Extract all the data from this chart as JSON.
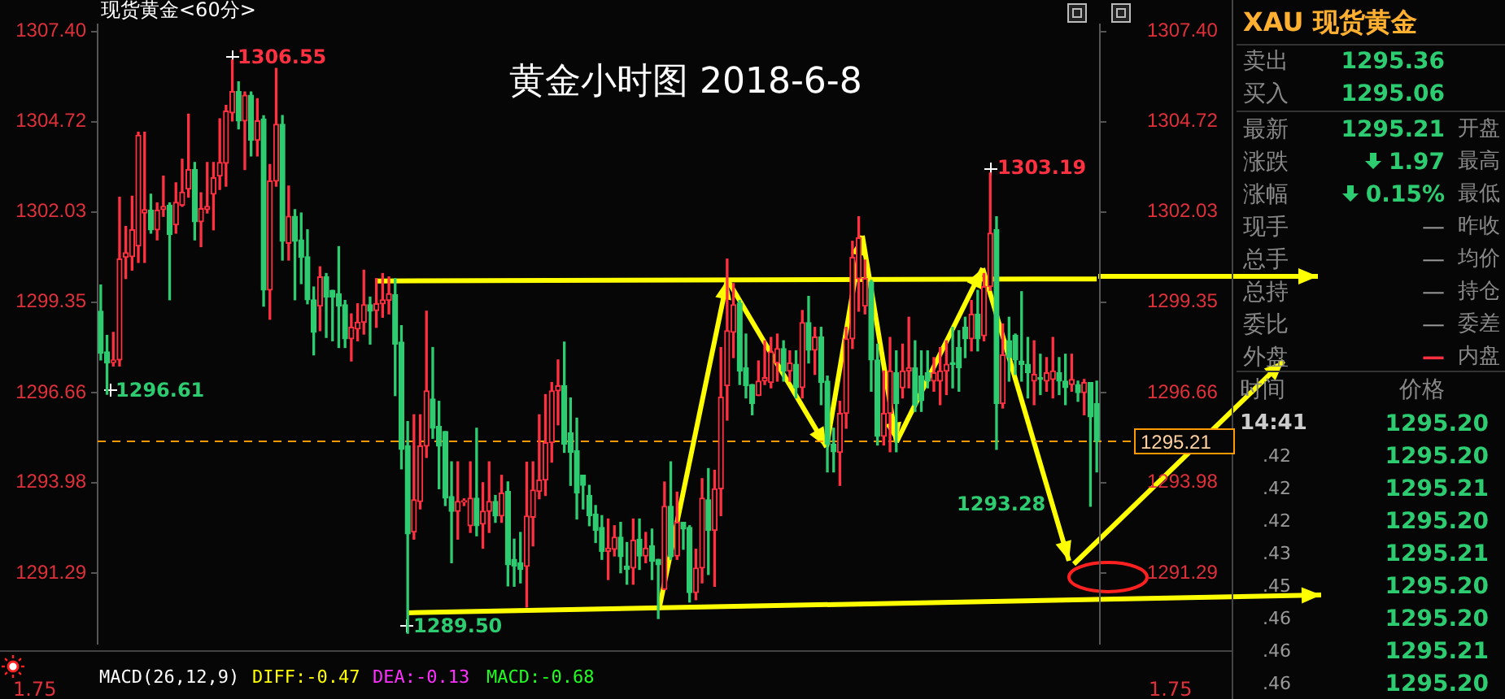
{
  "chart_data": [
    {
      "type": "candlestick",
      "title": "黄金小时图 2018-6-8",
      "categories": [
        null,
        null,
        null,
        null,
        null,
        null,
        null,
        null,
        null,
        null,
        null,
        null,
        null,
        null,
        null,
        null,
        null,
        null,
        null,
        null,
        null,
        null,
        null,
        null,
        null,
        null,
        null,
        null,
        null,
        null,
        null,
        null,
        null,
        null,
        null,
        null,
        null,
        null,
        null,
        null,
        null,
        null,
        null,
        null,
        null,
        null,
        null,
        null,
        null,
        null,
        null,
        null,
        null,
        null,
        null,
        null,
        null,
        null,
        null,
        null,
        null,
        null,
        null,
        null,
        null,
        null,
        null,
        null,
        null,
        null,
        null,
        null,
        null,
        null,
        null,
        null,
        null,
        null,
        null,
        null,
        null,
        null,
        null,
        null,
        null,
        null,
        null,
        null,
        null,
        null,
        null,
        null,
        null,
        null,
        null,
        null,
        null,
        null,
        null,
        null,
        null,
        null,
        null,
        null,
        null,
        null,
        null,
        null,
        null,
        null,
        null,
        null,
        null,
        null,
        null,
        null,
        null,
        null,
        null,
        null,
        null,
        null,
        null,
        null,
        null,
        null,
        null,
        null,
        null,
        null,
        null,
        null,
        null,
        null,
        null,
        null,
        null,
        null,
        null,
        null,
        null,
        null,
        null,
        null,
        null,
        null,
        null,
        null,
        null,
        null,
        null,
        null,
        null,
        null,
        null,
        null,
        null,
        null,
        null,
        null
      ],
      "ohlc": [
        [
          1299.08,
          1299.86,
          1297.63,
          1297.83
        ],
        [
          1297.87,
          1298.36,
          1296.61,
          1297.54
        ],
        [
          1297.55,
          1298.45,
          1297.45,
          1297.63
        ],
        [
          1297.63,
          1302.47,
          1297.45,
          1300.63
        ],
        [
          1300.68,
          1301.6,
          1300.05,
          1300.82
        ],
        [
          1300.7,
          1302.5,
          1300.3,
          1301.5
        ],
        [
          1301.02,
          1304.4,
          1300.53,
          1304.31
        ],
        [
          1302.0,
          1304.4,
          1300.53,
          1302.1
        ],
        [
          1302.08,
          1302.56,
          1301.4,
          1301.5
        ],
        [
          1301.5,
          1302.3,
          1301.2,
          1302.08
        ],
        [
          1302.1,
          1303.1,
          1301.9,
          1302.2
        ],
        [
          1302.23,
          1302.3,
          1299.42,
          1301.36
        ],
        [
          1301.65,
          1302.9,
          1301.4,
          1302.32
        ],
        [
          1302.23,
          1303.6,
          1302.2,
          1302.62
        ],
        [
          1302.71,
          1304.94,
          1302.47,
          1303.29
        ],
        [
          1303.29,
          1303.5,
          1301.2,
          1301.74
        ],
        [
          1301.74,
          1302.6,
          1301.0,
          1302.13
        ],
        [
          1302.1,
          1303.5,
          1302.0,
          1302.2
        ],
        [
          1302.56,
          1303.5,
          1301.5,
          1303.05
        ],
        [
          1303.1,
          1304.8,
          1302.7,
          1303.5
        ],
        [
          1303.48,
          1305.2,
          1302.8,
          1305.03
        ],
        [
          1304.98,
          1306.55,
          1304.74,
          1305.61
        ],
        [
          1305.61,
          1305.9,
          1304.5,
          1304.74
        ],
        [
          1304.74,
          1305.6,
          1303.29,
          1305.5
        ],
        [
          1305.5,
          1305.6,
          1303.7,
          1304.16
        ],
        [
          1304.16,
          1305.4,
          1303.7,
          1304.74
        ],
        [
          1304.79,
          1304.89,
          1299.23,
          1299.71
        ],
        [
          1299.71,
          1303.44,
          1298.84,
          1302.95
        ],
        [
          1302.95,
          1306.3,
          1302.8,
          1304.64
        ],
        [
          1304.64,
          1304.9,
          1300.6,
          1301.16
        ],
        [
          1301.1,
          1302.8,
          1300.6,
          1301.9
        ],
        [
          1301.9,
          1302.1,
          1299.42,
          1301.16
        ],
        [
          1301.2,
          1302.0,
          1299.9,
          1300.68
        ],
        [
          1300.7,
          1301.5,
          1299.3,
          1299.42
        ],
        [
          1299.42,
          1299.8,
          1297.78,
          1298.45
        ],
        [
          1299.23,
          1300.4,
          1298.5,
          1300.1
        ],
        [
          1300.1,
          1300.2,
          1298.3,
          1299.5
        ],
        [
          1299.7,
          1299.7,
          1298.2,
          1299.5
        ],
        [
          1299.6,
          1301.0,
          1298.0,
          1299.23
        ],
        [
          1299.27,
          1299.4,
          1298.0,
          1298.26
        ],
        [
          1298.26,
          1299.0,
          1297.6,
          1298.6
        ],
        [
          1298.55,
          1299.3,
          1298.2,
          1298.75
        ],
        [
          1298.75,
          1300.3,
          1298.4,
          1299.27
        ],
        [
          1299.27,
          1299.5,
          1298.1,
          1299.08
        ],
        [
          1299.1,
          1300.05,
          1298.6,
          1299.3
        ],
        [
          1299.3,
          1300.2,
          1298.9,
          1299.42
        ],
        [
          1299.4,
          1300.1,
          1299.0,
          1299.6
        ],
        [
          1299.57,
          1300.05,
          1296.57,
          1298.1
        ],
        [
          1298.16,
          1298.65,
          1294.39,
          1294.97
        ],
        [
          1295.07,
          1295.8,
          1289.5,
          1292.46
        ],
        [
          1292.51,
          1296.0,
          1292.3,
          1293.47
        ],
        [
          1293.42,
          1296.0,
          1293.2,
          1295.07
        ],
        [
          1295.07,
          1299.08,
          1294.73,
          1296.71
        ],
        [
          1296.47,
          1298.0,
          1295.3,
          1295.6
        ],
        [
          1295.65,
          1296.4,
          1293.8,
          1295.07
        ],
        [
          1295.5,
          1295.5,
          1293.3,
          1293.52
        ],
        [
          1293.57,
          1294.6,
          1291.6,
          1293.13
        ],
        [
          1293.13,
          1294.6,
          1292.3,
          1293.42
        ],
        [
          1293.4,
          1293.5,
          1293.3,
          1293.4
        ],
        [
          1292.7,
          1294.6,
          1292.5,
          1293.52
        ],
        [
          1293.52,
          1295.6,
          1292.4,
          1292.7
        ],
        [
          1292.75,
          1293.98,
          1292.03,
          1293.13
        ],
        [
          1293.13,
          1294.6,
          1292.5,
          1293.42
        ],
        [
          1293.42,
          1293.6,
          1292.8,
          1292.99
        ],
        [
          1292.99,
          1294.2,
          1292.8,
          1293.67
        ],
        [
          1293.72,
          1294.0,
          1290.91,
          1291.54
        ],
        [
          1291.7,
          1292.3,
          1290.9,
          1291.5
        ],
        [
          1291.6,
          1292.5,
          1291.0,
          1291.4
        ],
        [
          1291.49,
          1294.59,
          1290.28,
          1292.99
        ],
        [
          1292.95,
          1294.6,
          1292.1,
          1293.76
        ],
        [
          1293.72,
          1296.0,
          1293.5,
          1294.06
        ],
        [
          1294.06,
          1296.6,
          1293.6,
          1295.17
        ],
        [
          1295.17,
          1296.96,
          1294.59,
          1296.71
        ],
        [
          1296.71,
          1297.63,
          1295.7,
          1296.86
        ],
        [
          1296.86,
          1298.16,
          1294.88,
          1295.12
        ],
        [
          1295.46,
          1296.5,
          1293.9,
          1294.88
        ],
        [
          1294.93,
          1295.9,
          1292.9,
          1293.67
        ],
        [
          1294.2,
          1294.2,
          1293.2,
          1293.9
        ],
        [
          1293.6,
          1293.9,
          1292.7,
          1293.0
        ],
        [
          1293.04,
          1293.3,
          1292.2,
          1292.56
        ],
        [
          1292.65,
          1293.0,
          1291.7,
          1291.94
        ],
        [
          1291.94,
          1292.9,
          1291.1,
          1292.03
        ],
        [
          1292.0,
          1292.7,
          1291.8,
          1292.36
        ],
        [
          1292.36,
          1292.8,
          1291.3,
          1291.78
        ],
        [
          1291.5,
          1292.2,
          1290.96,
          1291.4
        ],
        [
          1291.44,
          1292.9,
          1290.96,
          1292.27
        ],
        [
          1292.3,
          1292.9,
          1291.4,
          1291.8
        ],
        [
          1291.8,
          1292.5,
          1291.6,
          1292.03
        ],
        [
          1292.1,
          1292.6,
          1291.1,
          1291.64
        ],
        [
          1291.7,
          1291.7,
          1289.94,
          1291.54
        ],
        [
          1290.81,
          1294.0,
          1290.8,
          1293.28
        ],
        [
          1293.28,
          1294.6,
          1291.7,
          1291.78
        ],
        [
          1291.8,
          1293.7,
          1291.7,
          1292.8
        ],
        [
          1292.8,
          1292.8,
          1292.0,
          1292.6
        ],
        [
          1292.65,
          1292.7,
          1290.43,
          1290.71
        ],
        [
          1290.71,
          1292.0,
          1290.5,
          1291.44
        ],
        [
          1291.44,
          1294.1,
          1291.0,
          1293.52
        ],
        [
          1293.47,
          1294.4,
          1291.25,
          1292.56
        ],
        [
          1292.56,
          1294.35,
          1290.9,
          1293.8
        ],
        [
          1293.8,
          1298.0,
          1293.0,
          1296.52
        ],
        [
          1296.86,
          1300.63,
          1295.84,
          1298.5
        ],
        [
          1298.45,
          1299.9,
          1297.7,
          1299.27
        ],
        [
          1299.32,
          1299.4,
          1296.9,
          1297.3
        ],
        [
          1297.4,
          1298.4,
          1296.5,
          1296.86
        ],
        [
          1296.9,
          1296.9,
          1296.0,
          1296.33
        ],
        [
          1296.57,
          1297.6,
          1296.57,
          1297.0
        ],
        [
          1297.0,
          1298.2,
          1296.9,
          1297.1
        ],
        [
          1296.96,
          1298.3,
          1296.8,
          1297.87
        ],
        [
          1297.54,
          1298.4,
          1297.0,
          1297.97
        ],
        [
          1297.97,
          1298.2,
          1297.0,
          1297.3
        ],
        [
          1297.3,
          1297.9,
          1297.0,
          1297.54
        ],
        [
          1297.5,
          1297.9,
          1296.5,
          1296.81
        ],
        [
          1296.81,
          1299.1,
          1296.5,
          1298.74
        ],
        [
          1298.74,
          1299.52,
          1297.54,
          1297.92
        ],
        [
          1297.92,
          1298.6,
          1297.2,
          1298.31
        ],
        [
          1298.31,
          1298.6,
          1296.3,
          1296.96
        ],
        [
          1297.0,
          1297.15,
          1294.3,
          1295.12
        ],
        [
          1295.12,
          1295.6,
          1294.3,
          1294.9
        ],
        [
          1294.88,
          1296.4,
          1293.9,
          1296.04
        ],
        [
          1296.04,
          1298.6,
          1295.6,
          1298.26
        ],
        [
          1298.26,
          1301.16,
          1297.97,
          1300.68
        ],
        [
          1300.05,
          1301.89,
          1299.08,
          1301.26
        ],
        [
          1299.23,
          1300.6,
          1299.0,
          1300.05
        ],
        [
          1299.95,
          1300.0,
          1296.7,
          1297.63
        ],
        [
          1297.63,
          1298.1,
          1295.1,
          1295.36
        ],
        [
          1295.36,
          1297.3,
          1295.1,
          1296.04
        ],
        [
          1296.04,
          1298.3,
          1294.9,
          1297.3
        ],
        [
          1297.25,
          1297.9,
          1294.9,
          1296.33
        ],
        [
          1296.8,
          1298.1,
          1296.5,
          1297.3
        ],
        [
          1297.3,
          1298.9,
          1296.8,
          1297.4
        ],
        [
          1297.4,
          1298.2,
          1296.1,
          1296.28
        ],
        [
          1297.15,
          1297.9,
          1296.1,
          1296.42
        ],
        [
          1297.25,
          1297.9,
          1296.8,
          1297.0
        ],
        [
          1297.0,
          1297.7,
          1296.7,
          1297.25
        ],
        [
          1297.0,
          1298.0,
          1296.3,
          1297.3
        ],
        [
          1297.3,
          1298.2,
          1296.6,
          1297.5
        ],
        [
          1297.55,
          1298.6,
          1296.8,
          1297.5
        ],
        [
          1298.0,
          1298.5,
          1296.7,
          1297.4
        ],
        [
          1298.6,
          1298.9,
          1297.7,
          1298.26
        ],
        [
          1298.26,
          1299.4,
          1297.9,
          1298.99
        ],
        [
          1298.99,
          1299.7,
          1297.9,
          1298.26
        ],
        [
          1298.35,
          1300.2,
          1298.2,
          1299.81
        ],
        [
          1299.81,
          1303.19,
          1299.7,
          1301.4
        ],
        [
          1301.5,
          1301.89,
          1294.97,
          1296.33
        ],
        [
          1296.33,
          1298.7,
          1296.2,
          1297.78
        ],
        [
          1298.2,
          1298.9,
          1297.0,
          1297.7
        ],
        [
          1298.36,
          1298.4,
          1297.2,
          1297.63
        ],
        [
          1297.6,
          1299.66,
          1297.0,
          1297.5
        ],
        [
          1297.5,
          1298.3,
          1296.5,
          1297.25
        ],
        [
          1297.0,
          1298.2,
          1296.3,
          1297.2
        ],
        [
          1297.1,
          1297.8,
          1296.6,
          1297.05
        ],
        [
          1297.0,
          1297.7,
          1296.7,
          1297.25
        ],
        [
          1297.05,
          1298.3,
          1296.5,
          1297.3
        ],
        [
          1297.25,
          1297.7,
          1296.6,
          1297.0
        ],
        [
          1297.0,
          1297.8,
          1296.3,
          1296.81
        ],
        [
          1296.9,
          1297.8,
          1296.7,
          1297.05
        ],
        [
          1296.9,
          1297.0,
          1296.4,
          1296.66
        ],
        [
          1296.66,
          1297.05,
          1296.0,
          1296.96
        ],
        [
          1296.96,
          1296.96,
          1293.28,
          1295.94
        ],
        [
          1296.33,
          1297.0,
          1294.3,
          1295.21
        ]
      ],
      "series": [
        {
          "type": "line",
          "color": "#ffff00",
          "values": [
            null,
            null,
            null,
            null,
            null,
            null,
            null,
            null,
            null,
            null,
            null,
            null,
            null,
            null,
            null,
            null,
            null,
            null,
            null,
            null,
            null,
            null,
            null,
            null,
            null,
            null,
            null,
            null,
            null,
            null,
            null,
            null,
            null,
            null,
            null,
            null,
            null,
            null,
            null,
            null,
            null,
            null,
            null,
            null,
            1299.98,
            null,
            null,
            null,
            null,
            null,
            null,
            null,
            null,
            null,
            null,
            null,
            null,
            null,
            null,
            null,
            null,
            null,
            null,
            null,
            null,
            null,
            null,
            null,
            null,
            null,
            null,
            null,
            null,
            null,
            null,
            null,
            null,
            null,
            null,
            null,
            null,
            null,
            null,
            null,
            null,
            null,
            null,
            null,
            null,
            null,
            null,
            null,
            null,
            null,
            null,
            null,
            null,
            null,
            null,
            null,
            null,
            null,
            null,
            null,
            null,
            null,
            null,
            null,
            null,
            null,
            null,
            null,
            null,
            null,
            null,
            null,
            null,
            null,
            null,
            null,
            null,
            null,
            null,
            null,
            null,
            null,
            null,
            null,
            null,
            null,
            null,
            null,
            null,
            null,
            null,
            null,
            null,
            null,
            null,
            null,
            null,
            null,
            null,
            null,
            null,
            null,
            null,
            null,
            null,
            null,
            null,
            null,
            null,
            null,
            null,
            null,
            null,
            null,
            null,
            1300.04
          ]
        }
      ],
      "ylim": [
        1289.2,
        1307.6
      ],
      "yticks": [
        {
          "value": 1307.4,
          "label": "1307.40"
        },
        1304.72,
        1302.03,
        1299.35,
        1296.66,
        1293.98,
        1291.29
      ],
      "y2lim": [
        1289.2,
        1307.6
      ],
      "y2ticks": [
        {
          "value": 1307.4,
          "label": "1307.40"
        },
        1304.72,
        1302.03,
        1299.35,
        1296.66,
        1293.98,
        1291.29
      ],
      "ref_lines": [
        {
          "axis": "y2",
          "value": 1295.21,
          "label": "1295.21",
          "color": "#ff9900",
          "line_style": "dashed"
        }
      ],
      "annotations": [
        "现货黄金<60分>",
        "MACD(26,12,9)",
        "DIFF:-0.47",
        "DEA:-0.13",
        "MACD:-0.68",
        "1.75",
        "1.75",
        "1306.55",
        "1289.50",
        "1296.61",
        "1303.19",
        "1293.28"
      ],
      "grid": false,
      "legend": false
    },
    {
      "type": "other",
      "title": "XAU 现货黄金",
      "categories": [
        "卖出",
        "买入",
        "最新",
        "涨跌",
        "涨幅",
        "现手",
        "总手",
        "总持",
        "委比",
        "外盘"
      ],
      "value_labels": [
        "1295.36",
        "1295.06",
        "1295.21",
        "1.97",
        "0.15%",
        "—",
        "—",
        "—",
        "—",
        "—"
      ],
      "annotations": [
        "开盘",
        "最高",
        "最低",
        "昨收",
        "均价",
        "持仓",
        "委差",
        "内盘"
      ]
    },
    {
      "type": "other",
      "xlabel": "时间",
      "ylabel": "价格",
      "categories": [
        "14:41",
        ".42",
        ".42",
        ".42",
        ".43",
        ".45",
        ".46",
        ".46",
        ".46"
      ],
      "value_labels": [
        "1295.20",
        "1295.20",
        "1295.21",
        "1295.20",
        "1295.21",
        "1295.20",
        "1295.20",
        "1295.21",
        "1295.20"
      ]
    }
  ]
}
